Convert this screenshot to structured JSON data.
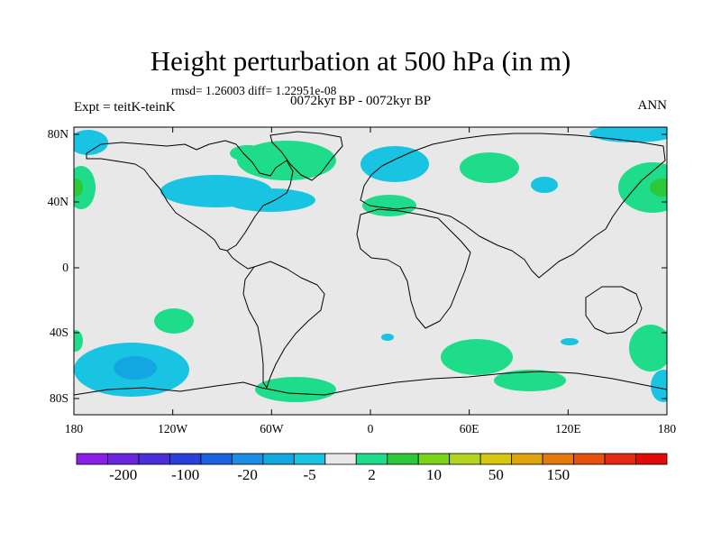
{
  "title": "Height perturbation at 500 hPa (in m)",
  "stats_text": "rmsd= 1.26003 diff= 1.22951e-08",
  "period_label": "0072kyr BP - 0072kyr BP",
  "experiment_label": "Expt = teitK-teinK",
  "season_label": "ANN",
  "lat_ticks": [
    "80N",
    "40N",
    "0",
    "40S",
    "80S"
  ],
  "lon_ticks": [
    "180",
    "120W",
    "60W",
    "0",
    "60E",
    "120E",
    "180"
  ],
  "colorbar": {
    "colors": [
      "#8a1fe6",
      "#6a26df",
      "#4a2ed8",
      "#2a40d8",
      "#1a62de",
      "#1f8ce3",
      "#14a6e0",
      "#18c4e2",
      "#e8e8e8",
      "#1fdc8a",
      "#2ec73a",
      "#7ad41c",
      "#b3d421",
      "#d8c712",
      "#dea50f",
      "#e27a0c",
      "#e5510f",
      "#e32a12",
      "#e00b0b"
    ],
    "labels": [
      "-200",
      "-100",
      "-20",
      "-5",
      "2",
      "10",
      "50",
      "150"
    ]
  },
  "map": {
    "background": "#e8e8e8",
    "positive_color": "#1fdc8a",
    "positive_strong_color": "#2ec73a",
    "negative_color": "#18c4e2",
    "negative_strong_color": "#14a6e0"
  }
}
